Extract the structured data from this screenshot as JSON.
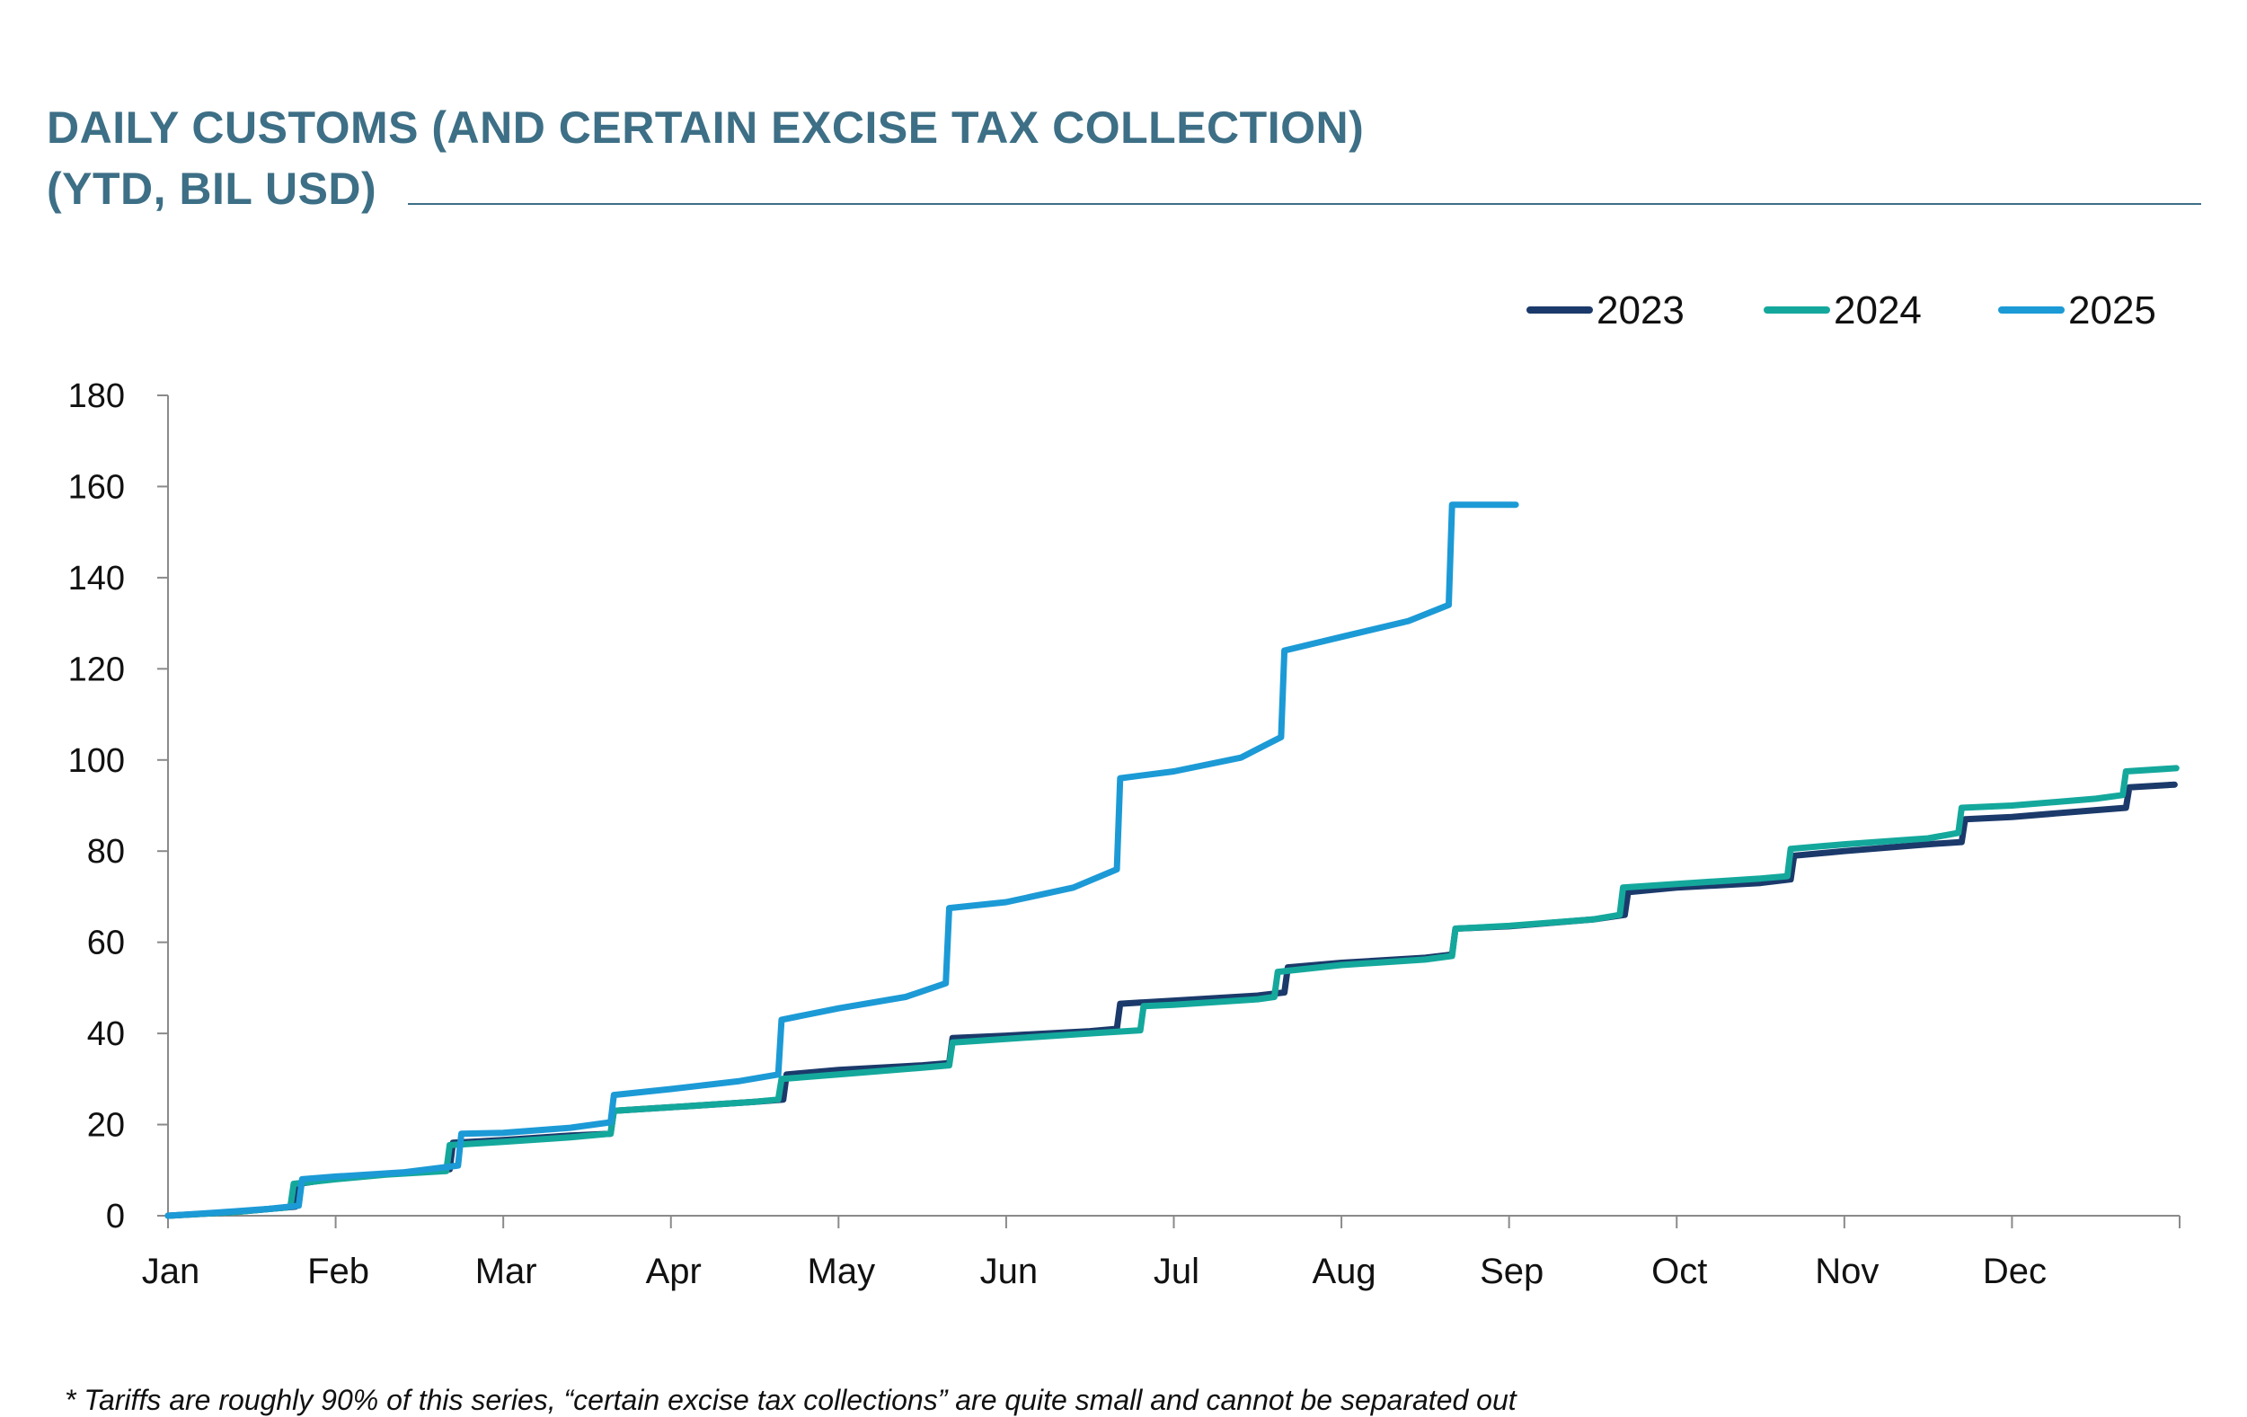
{
  "chart_data": {
    "type": "line",
    "title": "DAILY CUSTOMS (AND CERTAIN EXCISE TAX COLLECTION)",
    "subtitle": "(YTD, BIL USD)",
    "xlabel": "",
    "ylabel": "",
    "x_ticks": [
      "Jan",
      "Feb",
      "Mar",
      "Apr",
      "May",
      "Jun",
      "Jul",
      "Aug",
      "Sep",
      "Oct",
      "Nov",
      "Dec"
    ],
    "y_ticks": [
      0,
      20,
      40,
      60,
      80,
      100,
      120,
      140,
      160,
      180
    ],
    "ylim": [
      0,
      180
    ],
    "xlim": [
      0,
      12
    ],
    "grid": false,
    "legend_position": "top-right",
    "series": [
      {
        "name": "2023",
        "color": "#1b3a6b",
        "points": [
          [
            0.0,
            0.0
          ],
          [
            0.4,
            0.8
          ],
          [
            0.7,
            1.8
          ],
          [
            0.76,
            2.0
          ],
          [
            0.78,
            7.0
          ],
          [
            1.0,
            8.2
          ],
          [
            1.3,
            9.2
          ],
          [
            1.68,
            10.2
          ],
          [
            1.7,
            16.0
          ],
          [
            2.0,
            16.6
          ],
          [
            2.4,
            17.6
          ],
          [
            2.64,
            18.0
          ],
          [
            2.66,
            23.0
          ],
          [
            3.0,
            23.8
          ],
          [
            3.5,
            25.0
          ],
          [
            3.67,
            25.5
          ],
          [
            3.69,
            31.0
          ],
          [
            4.0,
            32.0
          ],
          [
            4.5,
            33.0
          ],
          [
            4.66,
            33.5
          ],
          [
            4.68,
            39.0
          ],
          [
            5.0,
            39.5
          ],
          [
            5.5,
            40.5
          ],
          [
            5.66,
            41.0
          ],
          [
            5.68,
            46.5
          ],
          [
            6.0,
            47.2
          ],
          [
            6.5,
            48.3
          ],
          [
            6.66,
            49.0
          ],
          [
            6.68,
            54.5
          ],
          [
            7.0,
            55.5
          ],
          [
            7.5,
            56.6
          ],
          [
            7.66,
            57.3
          ],
          [
            7.68,
            63.0
          ],
          [
            8.0,
            63.5
          ],
          [
            8.5,
            65.0
          ],
          [
            8.69,
            66.0
          ],
          [
            8.71,
            71.0
          ],
          [
            9.0,
            72.0
          ],
          [
            9.5,
            73.0
          ],
          [
            9.68,
            73.8
          ],
          [
            9.7,
            79.0
          ],
          [
            10.0,
            80.0
          ],
          [
            10.5,
            81.5
          ],
          [
            10.7,
            82.0
          ],
          [
            10.72,
            87.0
          ],
          [
            11.0,
            87.5
          ],
          [
            11.5,
            89.0
          ],
          [
            11.68,
            89.5
          ],
          [
            11.7,
            94.0
          ],
          [
            11.97,
            94.6
          ]
        ]
      },
      {
        "name": "2024",
        "color": "#14a89c",
        "points": [
          [
            0.0,
            0.0
          ],
          [
            0.4,
            0.8
          ],
          [
            0.7,
            1.8
          ],
          [
            0.73,
            2.0
          ],
          [
            0.75,
            7.0
          ],
          [
            1.0,
            8.0
          ],
          [
            1.3,
            9.0
          ],
          [
            1.66,
            9.8
          ],
          [
            1.68,
            15.5
          ],
          [
            2.0,
            16.2
          ],
          [
            2.4,
            17.2
          ],
          [
            2.64,
            18.0
          ],
          [
            2.66,
            23.0
          ],
          [
            3.0,
            23.8
          ],
          [
            3.5,
            25.0
          ],
          [
            3.64,
            25.5
          ],
          [
            3.66,
            30.0
          ],
          [
            4.0,
            31.0
          ],
          [
            4.5,
            32.5
          ],
          [
            4.66,
            33.0
          ],
          [
            4.68,
            38.0
          ],
          [
            5.0,
            38.8
          ],
          [
            5.5,
            40.0
          ],
          [
            5.8,
            40.7
          ],
          [
            5.82,
            46.0
          ],
          [
            6.0,
            46.3
          ],
          [
            6.5,
            47.5
          ],
          [
            6.6,
            48.0
          ],
          [
            6.62,
            53.5
          ],
          [
            7.0,
            55.0
          ],
          [
            7.5,
            56.2
          ],
          [
            7.66,
            57.0
          ],
          [
            7.68,
            63.0
          ],
          [
            8.0,
            63.6
          ],
          [
            8.5,
            65.0
          ],
          [
            8.66,
            66.0
          ],
          [
            8.68,
            72.0
          ],
          [
            9.0,
            72.8
          ],
          [
            9.5,
            74.0
          ],
          [
            9.66,
            74.5
          ],
          [
            9.68,
            80.5
          ],
          [
            10.0,
            81.5
          ],
          [
            10.5,
            82.8
          ],
          [
            10.68,
            84.0
          ],
          [
            10.7,
            89.5
          ],
          [
            11.0,
            90.0
          ],
          [
            11.5,
            91.5
          ],
          [
            11.66,
            92.3
          ],
          [
            11.68,
            97.5
          ],
          [
            11.98,
            98.2
          ]
        ]
      },
      {
        "name": "2025",
        "color": "#1c9ad6",
        "points": [
          [
            0.0,
            0.0
          ],
          [
            0.3,
            0.7
          ],
          [
            0.6,
            1.5
          ],
          [
            0.78,
            2.2
          ],
          [
            0.8,
            8.0
          ],
          [
            1.0,
            8.6
          ],
          [
            1.4,
            9.5
          ],
          [
            1.73,
            11.0
          ],
          [
            1.75,
            18.0
          ],
          [
            2.0,
            18.2
          ],
          [
            2.4,
            19.3
          ],
          [
            2.64,
            20.5
          ],
          [
            2.66,
            26.5
          ],
          [
            3.0,
            27.8
          ],
          [
            3.4,
            29.5
          ],
          [
            3.64,
            31.0
          ],
          [
            3.66,
            43.0
          ],
          [
            4.0,
            45.5
          ],
          [
            4.4,
            48.0
          ],
          [
            4.64,
            51.0
          ],
          [
            4.66,
            67.5
          ],
          [
            5.0,
            68.8
          ],
          [
            5.4,
            72.0
          ],
          [
            5.66,
            76.0
          ],
          [
            5.68,
            96.0
          ],
          [
            6.0,
            97.5
          ],
          [
            6.4,
            100.5
          ],
          [
            6.64,
            105.0
          ],
          [
            6.66,
            124.0
          ],
          [
            7.0,
            127.0
          ],
          [
            7.4,
            130.5
          ],
          [
            7.64,
            134.0
          ],
          [
            7.66,
            156.0
          ],
          [
            8.04,
            156.0
          ]
        ]
      }
    ]
  },
  "footnote": "* Tariffs are roughly 90% of this series, “certain excise tax collections” are quite small and cannot be separated out"
}
